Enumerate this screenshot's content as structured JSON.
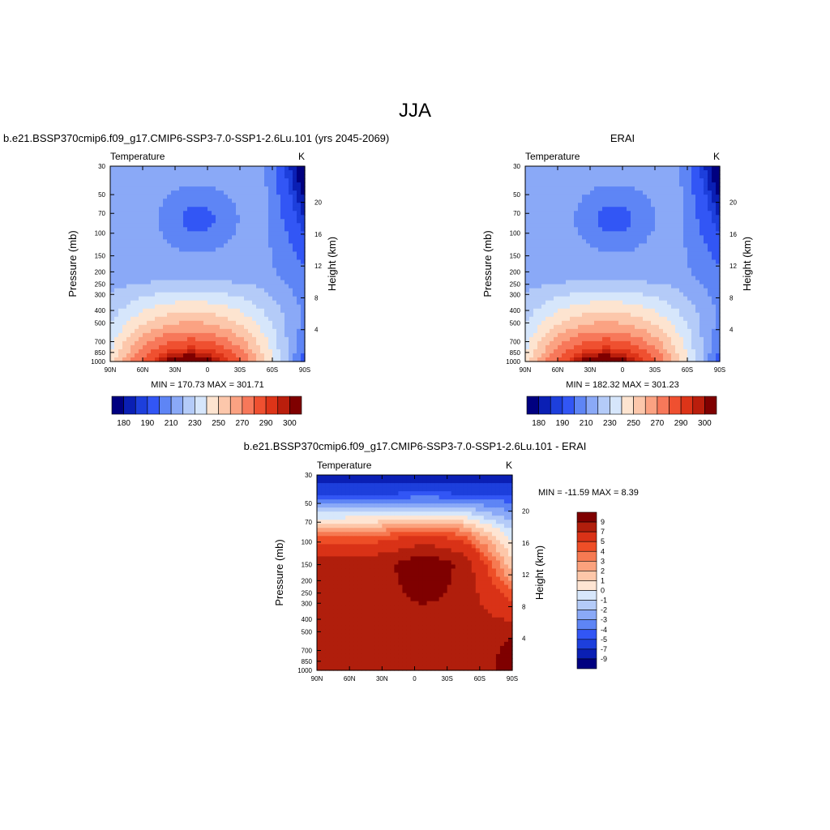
{
  "figure": {
    "title": "JJA",
    "panels": [
      {
        "left_title": "b.e21.BSSP370cmip6.f09_g17.CMIP6-SSP3-7.0-SSP1-2.6Lu.101 (yrs 2045-2069)",
        "center_title": "",
        "variable": "Temperature",
        "units": "K",
        "stats": "MIN = 170.73  MAX = 301.71"
      },
      {
        "left_title": "",
        "center_title": "ERAI",
        "variable": "Temperature",
        "units": "K",
        "stats": "MIN = 182.32  MAX = 301.23"
      },
      {
        "left_title": "",
        "center_title": "b.e21.BSSP370cmip6.f09_g17.CMIP6-SSP3-7.0-SSP1-2.6Lu.101 - ERAI",
        "variable": "Temperature",
        "units": "K",
        "stats": "MIN = -11.59  MAX =   8.39"
      }
    ],
    "abs_colorbar_labels": [
      "180",
      "190",
      "210",
      "230",
      "250",
      "270",
      "290",
      "300"
    ],
    "diff_colorbar_labels": [
      "9",
      "7",
      "5",
      "4",
      "3",
      "2",
      "1",
      "0",
      "-1",
      "-2",
      "-3",
      "-4",
      "-5",
      "-7",
      "-9"
    ],
    "abs_colors": [
      "#000080",
      "#0a1fb4",
      "#1d3fdc",
      "#3256f5",
      "#5e85f5",
      "#8aa9f7",
      "#b4cbf8",
      "#d6e6fb",
      "#fde4d0",
      "#fcc7ab",
      "#fba282",
      "#f7785a",
      "#ef5030",
      "#dd3418",
      "#ba1e0c",
      "#7f0000"
    ],
    "diff_colors": [
      "#7f0000",
      "#b01e0c",
      "#d93217",
      "#ee4e27",
      "#f67a52",
      "#fba27d",
      "#fdc7a9",
      "#fee5d3",
      "#d7e7fb",
      "#b4cbf8",
      "#8aa9f7",
      "#5e85f5",
      "#3256f5",
      "#1d3fdc",
      "#0a1fb4",
      "#000080"
    ]
  },
  "chart_data": [
    {
      "type": "heatmap",
      "title": "Temperature",
      "units": "K",
      "xlabel": "",
      "ylabel": "Pressure (mb)",
      "ylabel_right": "Height (km)",
      "x_ticks": [
        "90N",
        "60N",
        "30N",
        "0",
        "30S",
        "60S",
        "90S"
      ],
      "y_ticks": [
        "30",
        "50",
        "70",
        "100",
        "150",
        "200",
        "250",
        "300",
        "400",
        "500",
        "700",
        "850",
        "1000"
      ],
      "y_right_ticks": [
        "4",
        "8",
        "12",
        "16",
        "20"
      ],
      "levels": [
        180,
        185,
        190,
        200,
        210,
        220,
        230,
        240,
        250,
        260,
        270,
        280,
        290,
        295,
        300
      ],
      "min": 170.73,
      "max": 301.71
    },
    {
      "type": "heatmap",
      "title": "Temperature",
      "units": "K",
      "xlabel": "",
      "ylabel": "Pressure (mb)",
      "ylabel_right": "Height (km)",
      "x_ticks": [
        "90N",
        "60N",
        "30N",
        "0",
        "30S",
        "60S",
        "90S"
      ],
      "y_ticks": [
        "30",
        "50",
        "70",
        "100",
        "150",
        "200",
        "250",
        "300",
        "400",
        "500",
        "700",
        "850",
        "1000"
      ],
      "y_right_ticks": [
        "4",
        "8",
        "12",
        "16",
        "20"
      ],
      "levels": [
        180,
        185,
        190,
        200,
        210,
        220,
        230,
        240,
        250,
        260,
        270,
        280,
        290,
        295,
        300
      ],
      "min": 182.32,
      "max": 301.23
    },
    {
      "type": "heatmap",
      "title": "Temperature",
      "units": "K",
      "xlabel": "",
      "ylabel": "Pressure (mb)",
      "ylabel_right": "Height (km)",
      "x_ticks": [
        "90N",
        "60N",
        "30N",
        "0",
        "30S",
        "60S",
        "90S"
      ],
      "y_ticks": [
        "30",
        "50",
        "70",
        "100",
        "150",
        "200",
        "250",
        "300",
        "400",
        "500",
        "700",
        "850",
        "1000"
      ],
      "y_right_ticks": [
        "4",
        "8",
        "12",
        "16",
        "20"
      ],
      "levels": [
        -9,
        -7,
        -5,
        -4,
        -3,
        -2,
        -1,
        0,
        1,
        2,
        3,
        4,
        5,
        7,
        9
      ],
      "min": -11.59,
      "max": 8.39
    }
  ]
}
